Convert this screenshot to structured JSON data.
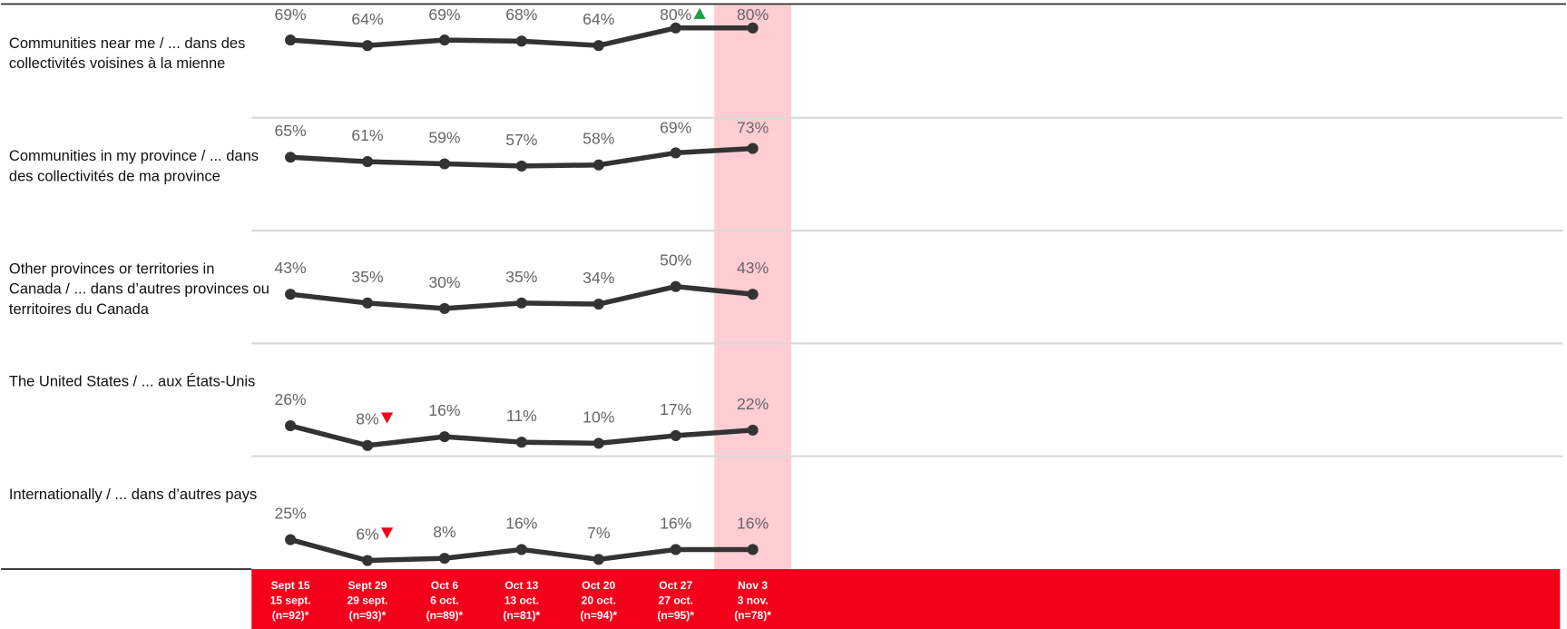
{
  "chart_data": {
    "type": "line",
    "categories": [
      [
        "Sept 15",
        "15 sept.",
        "(n=92)*"
      ],
      [
        "Sept 29",
        "29 sept.",
        "(n=93)*"
      ],
      [
        "Oct 6",
        "6 oct.",
        "(n=89)*"
      ],
      [
        "Oct 13",
        "13 oct.",
        "(n=81)*"
      ],
      [
        "Oct 20",
        "20 oct.",
        "(n=94)*"
      ],
      [
        "Oct 27",
        "27 oct.",
        "(n=95)*"
      ],
      [
        "Nov 3",
        "3 nov.",
        "(n=78)*"
      ]
    ],
    "ylim": [
      0,
      100
    ],
    "color": "#333333",
    "highlight_category": 6,
    "highlight_color": "#ffcdd2",
    "axis_band_color": "#f5001a",
    "series": [
      {
        "name": "Communities near me / ... dans des collectivités voisines à la mienne",
        "values": [
          69,
          64,
          69,
          68,
          64,
          80,
          80
        ],
        "value_labels": [
          "69%",
          "64%",
          "69%",
          "68%",
          "64%",
          "80%",
          "80%"
        ],
        "changes": [
          null,
          null,
          null,
          null,
          null,
          "up",
          null
        ]
      },
      {
        "name": "Communities in my province / ... dans des collectivités de ma province",
        "values": [
          65,
          61,
          59,
          57,
          58,
          69,
          73
        ],
        "value_labels": [
          "65%",
          "61%",
          "59%",
          "57%",
          "58%",
          "69%",
          "73%"
        ],
        "changes": [
          null,
          null,
          null,
          null,
          null,
          null,
          null
        ]
      },
      {
        "name": "Other provinces or territories in Canada / ... dans d’autres provinces ou territoires du Canada",
        "values": [
          43,
          35,
          30,
          35,
          34,
          50,
          43
        ],
        "value_labels": [
          "43%",
          "35%",
          "30%",
          "35%",
          "34%",
          "50%",
          "43%"
        ],
        "changes": [
          null,
          null,
          null,
          null,
          null,
          null,
          null
        ]
      },
      {
        "name": "The United States / ... aux États-Unis",
        "values": [
          26,
          8,
          16,
          11,
          10,
          17,
          22
        ],
        "value_labels": [
          "26%",
          "8%",
          "16%",
          "11%",
          "10%",
          "17%",
          "22%"
        ],
        "changes": [
          null,
          "down",
          null,
          null,
          null,
          null,
          null
        ]
      },
      {
        "name": "Internationally / ... dans d’autres pays",
        "values": [
          25,
          6,
          8,
          16,
          7,
          16,
          16
        ],
        "value_labels": [
          "25%",
          "6%",
          "8%",
          "16%",
          "7%",
          "16%",
          "16%"
        ],
        "changes": [
          null,
          "down",
          null,
          null,
          null,
          null,
          null
        ]
      }
    ]
  }
}
